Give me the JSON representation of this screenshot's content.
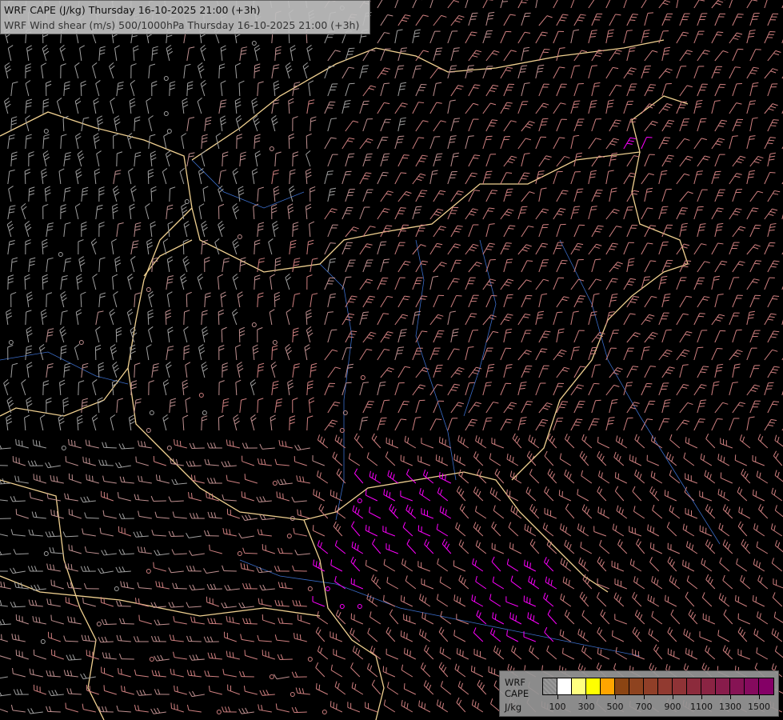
{
  "header": {
    "title_line1": "WRF CAPE (J/kg) Thursday 16-10-2025 21:00 (+3h)",
    "title_line2": "WRF Wind shear (m/s) 500/1000hPa Thursday 16-10-2025 21:00 (+3h)"
  },
  "legend": {
    "label_model": "WRF",
    "label_field": "CAPE",
    "label_unit": "J/kg",
    "colors": [
      "none",
      "#ffffff",
      "#ffff80",
      "#ffff00",
      "#ffa500",
      "#8b4513",
      "#8e431f",
      "#903f28",
      "#913a30",
      "#8f3336",
      "#8c2b3c",
      "#8a2443",
      "#881c4b",
      "#861354",
      "#850a5e",
      "#840066"
    ],
    "ticks": [
      "100",
      "300",
      "500",
      "700",
      "900",
      "1100",
      "1300",
      "1500"
    ]
  },
  "map": {
    "background": "#000000",
    "border_color": "#f0d090",
    "river_color": "#3a6cc8",
    "barb_colors": {
      "low": "#a0a0a0",
      "mid": "#d08080",
      "high_cape": "#ff00ff"
    }
  }
}
